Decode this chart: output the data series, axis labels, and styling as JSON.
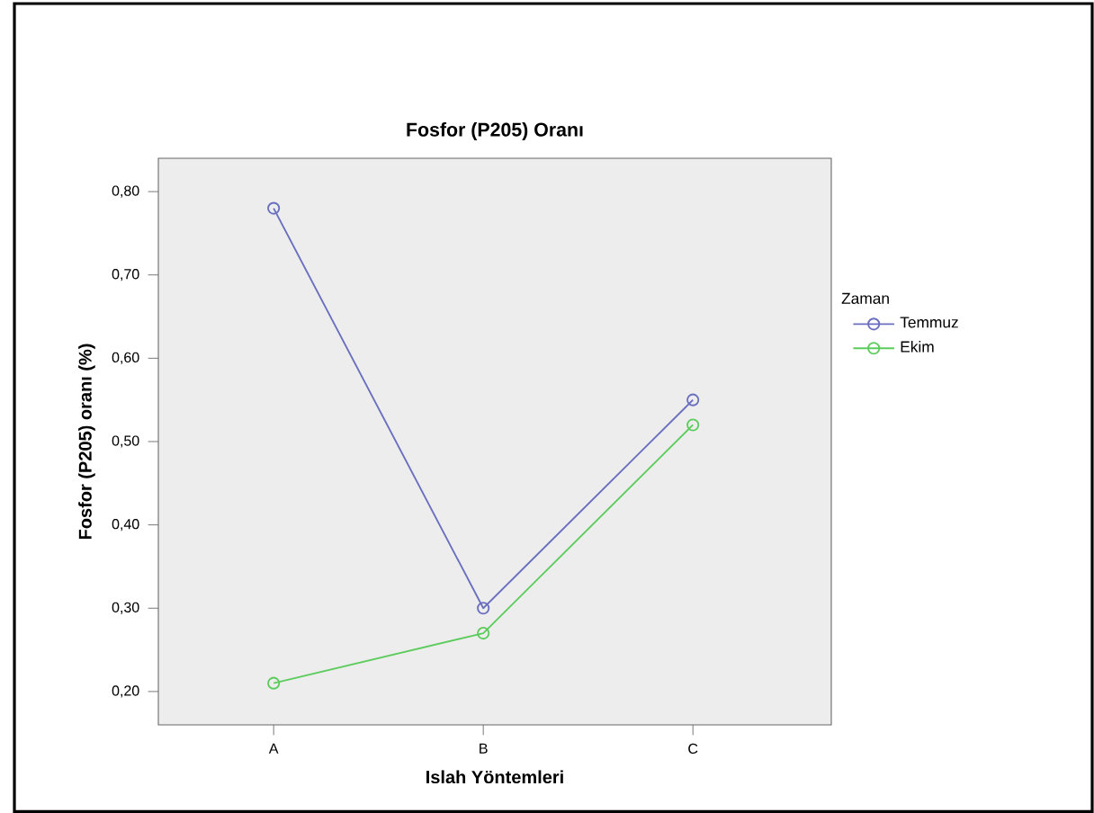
{
  "chart_data": {
    "type": "line",
    "title": "Fosfor (P205) Oranı",
    "xlabel": "Islah Yöntemleri",
    "ylabel": "Fosfor (P205) oranı (%)",
    "legend_title": "Zaman",
    "categories": [
      "A",
      "B",
      "C"
    ],
    "series": [
      {
        "name": "Temmuz",
        "color": "#6a6fbf",
        "values": [
          0.78,
          0.3,
          0.55
        ]
      },
      {
        "name": "Ekim",
        "color": "#5ccc5c",
        "values": [
          0.21,
          0.27,
          0.52
        ]
      }
    ],
    "ylim": [
      0.16,
      0.84
    ],
    "yticks": [
      {
        "value": 0.2,
        "label": "0,20"
      },
      {
        "value": 0.3,
        "label": "0,30"
      },
      {
        "value": 0.4,
        "label": "0,40"
      },
      {
        "value": 0.5,
        "label": "0,50"
      },
      {
        "value": 0.6,
        "label": "0,60"
      },
      {
        "value": 0.7,
        "label": "0,70"
      },
      {
        "value": 0.8,
        "label": "0,80"
      }
    ],
    "marker": "circle",
    "line_style": "solid",
    "grid": false,
    "legend": "right"
  }
}
